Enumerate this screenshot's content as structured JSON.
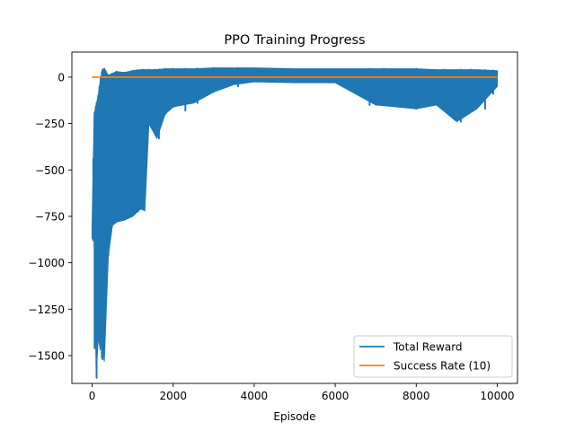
{
  "chart_data": {
    "type": "line",
    "title": "PPO Training Progress",
    "xlabel": "Episode",
    "ylabel": "",
    "xlim": [
      -500,
      10500
    ],
    "ylim": [
      -1650,
      135
    ],
    "xticks": [
      0,
      2000,
      4000,
      6000,
      8000,
      10000
    ],
    "xtick_labels": [
      "0",
      "2000",
      "4000",
      "6000",
      "8000",
      "10000"
    ],
    "yticks": [
      0,
      -250,
      -500,
      -750,
      -1000,
      -1250,
      -1500
    ],
    "ytick_labels": [
      "0",
      "−250",
      "−500",
      "−750",
      "−1000",
      "−1250",
      "−1500"
    ],
    "grid": false,
    "legend_position": "lower-right",
    "series": [
      {
        "name": "Total Reward",
        "color": "#1f77b4",
        "envelope": {
          "x": [
            0,
            50,
            100,
            150,
            200,
            250,
            300,
            400,
            500,
            600,
            800,
            1000,
            1200,
            1300,
            1400,
            1600,
            1800,
            2000,
            2500,
            3000,
            3500,
            4000,
            5000,
            6000,
            7000,
            8000,
            8500,
            9000,
            9500,
            10000
          ],
          "upper": [
            -800,
            -200,
            -150,
            -100,
            -20,
            40,
            45,
            10,
            20,
            30,
            25,
            35,
            40,
            40,
            40,
            40,
            45,
            45,
            45,
            50,
            50,
            50,
            45,
            45,
            45,
            45,
            40,
            40,
            40,
            35
          ],
          "lower": [
            -870,
            -880,
            -1620,
            -1400,
            -1470,
            -1300,
            -1530,
            -960,
            -800,
            -780,
            -770,
            -750,
            -710,
            -720,
            -250,
            -330,
            -200,
            -160,
            -140,
            -80,
            -40,
            -25,
            -30,
            -30,
            -150,
            -170,
            -150,
            -240,
            -170,
            -50
          ]
        },
        "spikes": [
          {
            "x": 30,
            "y": -880
          },
          {
            "x": 60,
            "y": -1460
          },
          {
            "x": 90,
            "y": -1460
          },
          {
            "x": 110,
            "y": -1620
          },
          {
            "x": 150,
            "y": -1420
          },
          {
            "x": 180,
            "y": -1050
          },
          {
            "x": 210,
            "y": -1200
          },
          {
            "x": 240,
            "y": -1510
          },
          {
            "x": 260,
            "y": -1520
          },
          {
            "x": 300,
            "y": -1300
          },
          {
            "x": 330,
            "y": -950
          },
          {
            "x": 400,
            "y": -960
          },
          {
            "x": 480,
            "y": -800
          },
          {
            "x": 600,
            "y": -780
          },
          {
            "x": 800,
            "y": -760
          },
          {
            "x": 1000,
            "y": -740
          },
          {
            "x": 1100,
            "y": -720
          },
          {
            "x": 1250,
            "y": -710
          },
          {
            "x": 1400,
            "y": -250
          },
          {
            "x": 1550,
            "y": -230
          },
          {
            "x": 1650,
            "y": -330
          },
          {
            "x": 1800,
            "y": -200
          },
          {
            "x": 2000,
            "y": -160
          },
          {
            "x": 2300,
            "y": -180
          },
          {
            "x": 2600,
            "y": -140
          },
          {
            "x": 3000,
            "y": -80
          },
          {
            "x": 3600,
            "y": -50
          },
          {
            "x": 6850,
            "y": -150
          },
          {
            "x": 7200,
            "y": -90
          },
          {
            "x": 8000,
            "y": -170
          },
          {
            "x": 8700,
            "y": -150
          },
          {
            "x": 9100,
            "y": -240
          },
          {
            "x": 9350,
            "y": -160
          },
          {
            "x": 9700,
            "y": -170
          },
          {
            "x": 9900,
            "y": -90
          }
        ]
      },
      {
        "name": "Success Rate (10)",
        "color": "#ff7f0e",
        "x": [
          0,
          10000
        ],
        "y": [
          0,
          0
        ]
      }
    ]
  }
}
